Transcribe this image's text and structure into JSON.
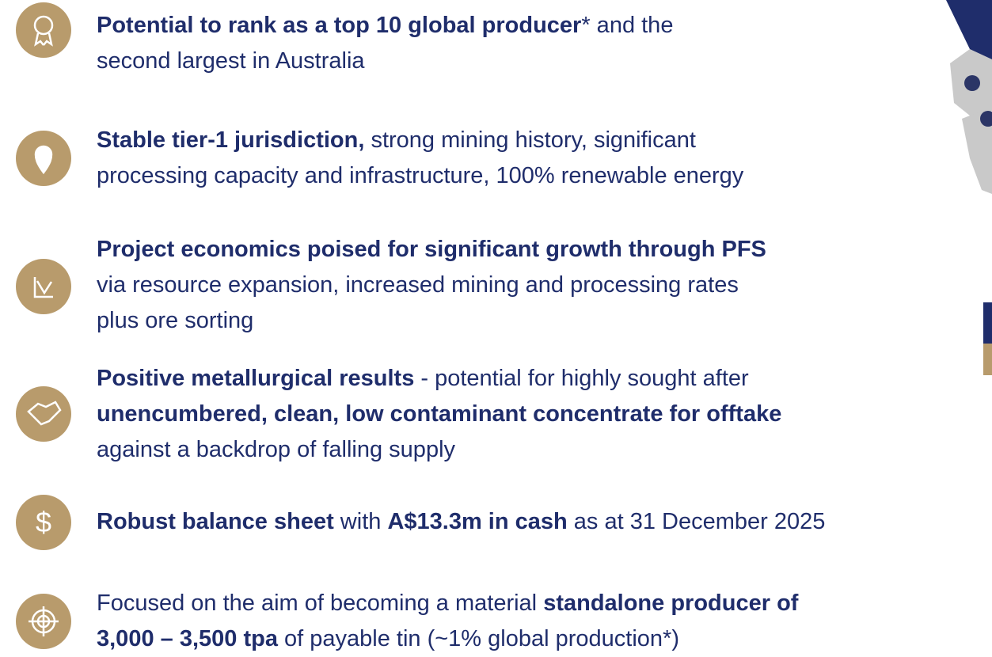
{
  "items": [
    {
      "lines": [
        [
          {
            "text": "Potential to rank as a top 10 global producer",
            "bold": true
          },
          {
            "text": "* and the",
            "bold": false
          }
        ],
        [
          {
            "text": "second largest in Australia",
            "bold": false
          }
        ]
      ]
    },
    {
      "lines": [
        [
          {
            "text": "Stable tier-1 jurisdiction,",
            "bold": true
          },
          {
            "text": " strong mining history, significant",
            "bold": false
          }
        ],
        [
          {
            "text": "processing capacity and infrastructure, 100% renewable energy",
            "bold": false
          }
        ]
      ]
    },
    {
      "lines": [
        [
          {
            "text": "Project economics poised for significant growth through PFS",
            "bold": true
          }
        ],
        [
          {
            "text": "via resource expansion, increased mining and processing rates",
            "bold": false
          }
        ],
        [
          {
            "text": "plus ore sorting",
            "bold": false
          }
        ]
      ]
    },
    {
      "lines": [
        [
          {
            "text": "Positive metallurgical results",
            "bold": true
          },
          {
            "text": " - potential for highly sought after",
            "bold": false
          }
        ],
        [
          {
            "text": "unencumbered, clean, low contaminant concentrate for offtake",
            "bold": true
          }
        ],
        [
          {
            "text": "against a backdrop of falling supply",
            "bold": false
          }
        ]
      ]
    },
    {
      "lines": [
        [
          {
            "text": "Robust balance sheet",
            "bold": true
          },
          {
            "text": " with ",
            "bold": false
          },
          {
            "text": "A$13.3m in cash",
            "bold": true
          },
          {
            "text": " as at 31 December 2025",
            "bold": false
          }
        ]
      ]
    },
    {
      "lines": [
        [
          {
            "text": "Focused on the aim of becoming a material ",
            "bold": false
          },
          {
            "text": "standalone producer of",
            "bold": true
          }
        ],
        [
          {
            "text": "3,000 – 3,500 tpa",
            "bold": true
          },
          {
            "text": " of payable tin (~1% global production*)",
            "bold": false
          }
        ]
      ]
    }
  ]
}
